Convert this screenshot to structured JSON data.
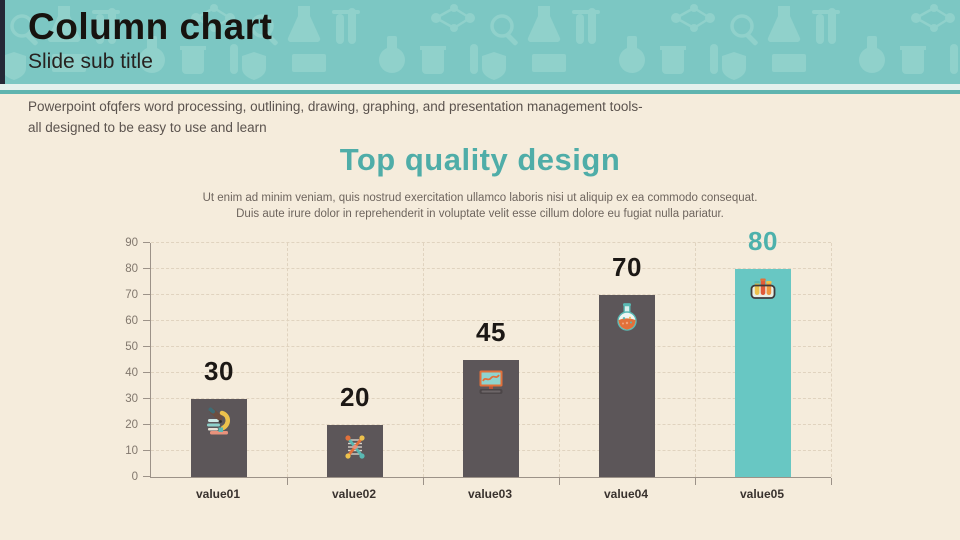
{
  "slide": {
    "title": "Column chart",
    "subtitle": "Slide sub title",
    "description_line1": "Powerpoint ofqfers word processing, outlining, drawing, graphing, and presentation management tools-",
    "description_line2": "all designed to be easy to use and learn"
  },
  "chart": {
    "title": "Top quality design",
    "subtitle_line1": "Ut enim ad minim veniam, quis nostrud exercitation ullamco laboris nisi ut aliquip ex ea commodo consequat.",
    "subtitle_line2": "Duis aute irure dolor in reprehenderit in voluptate velit esse cillum dolore eu fugiat nulla pariatur."
  },
  "chart_data": {
    "type": "bar",
    "categories": [
      "value01",
      "value02",
      "value03",
      "value04",
      "value05"
    ],
    "values": [
      30,
      20,
      45,
      70,
      80
    ],
    "title": "Top quality design",
    "xlabel": "",
    "ylabel": "",
    "ylim": [
      0,
      90
    ],
    "yticks": [
      0,
      10,
      20,
      30,
      40,
      50,
      60,
      70,
      80,
      90
    ],
    "grid": true,
    "legend": false,
    "bar_colors": [
      "#5c5659",
      "#5c5659",
      "#5c5659",
      "#5c5659",
      "#68c7c3"
    ],
    "value_label_colors": [
      "#1c1815",
      "#1c1815",
      "#1c1815",
      "#1c1815",
      "#4db1ac"
    ],
    "bar_icons": [
      "microscope-icon",
      "dna-icon",
      "monitor-icon",
      "flask-icon",
      "test-tubes-icon"
    ]
  },
  "colors": {
    "background": "#f5ecdc",
    "header_background": "#7cc7c3",
    "header_pattern": "#90d1cb",
    "header_side_strip": "#242836",
    "accent_line": "#5fb4af",
    "bar_gray": "#5c5659",
    "bar_teal": "#68c7c3",
    "chart_title_teal": "#4fada8"
  }
}
